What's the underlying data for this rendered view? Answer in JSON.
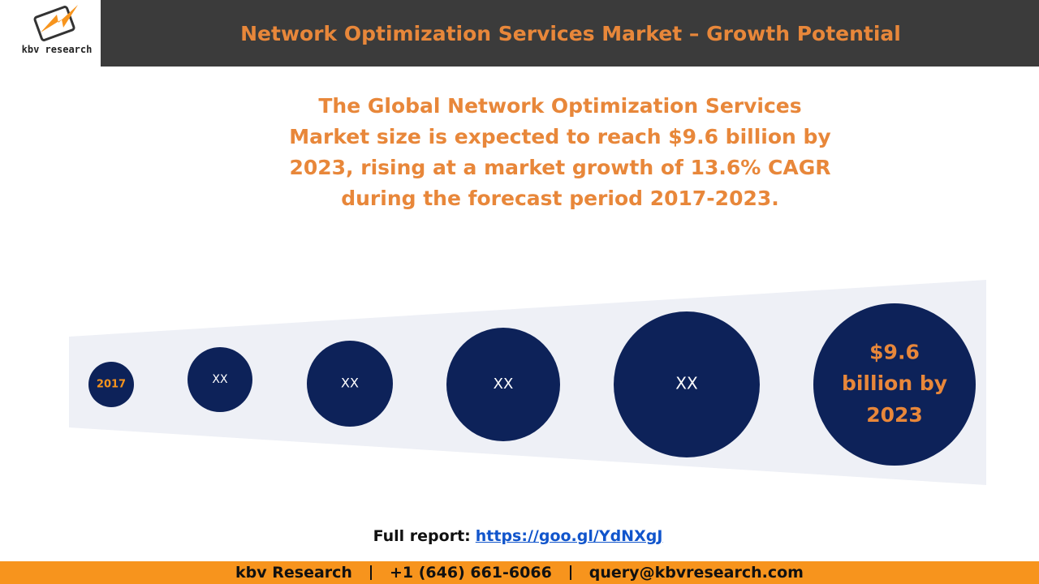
{
  "logo": {
    "text": "kbv research"
  },
  "header": {
    "title": "Network Optimization Services Market – Growth Potential"
  },
  "headline": [
    "The Global Network Optimization Services",
    "Market size is expected to reach $9.6 billion by",
    "2023, rising at a market growth of 13.6% CAGR",
    "during the forecast period 2017-2023."
  ],
  "circles": [
    {
      "lines": [
        "2017"
      ]
    },
    {
      "lines": [
        "XX"
      ]
    },
    {
      "lines": [
        "XX"
      ]
    },
    {
      "lines": [
        "XX"
      ]
    },
    {
      "lines": [
        "XX"
      ]
    },
    {
      "lines": [
        "$9.6",
        "billion by",
        "2023"
      ]
    }
  ],
  "report": {
    "label": "Full report:",
    "link": "https://goo.gl/YdNXgJ"
  },
  "footer": {
    "items": [
      "kbv Research",
      "+1 (646) 661-6066",
      "query@kbvresearch.com"
    ]
  }
}
